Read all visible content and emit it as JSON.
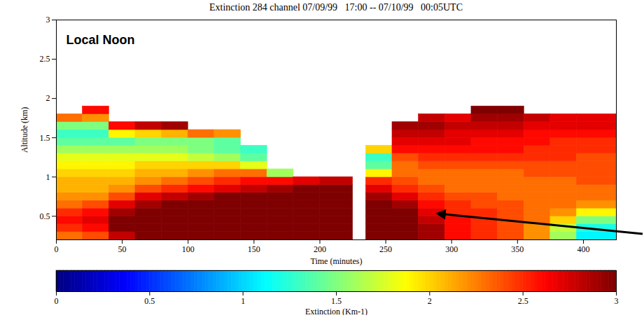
{
  "chart_data": {
    "type": "heatmap",
    "title": "Extinction 284 channel 07/09/99   17:00 -- 07/10/99   00:05UTC",
    "annotations": [
      "Local Noon"
    ],
    "xlabel": "Time (minutes)",
    "ylabel": "Altitude (km)",
    "xlim": [
      0,
      425
    ],
    "xticks": [
      0,
      50,
      100,
      150,
      200,
      250,
      300,
      350,
      400
    ],
    "ylim": [
      0.2,
      3
    ],
    "yticks": [
      0.5,
      1,
      1.5,
      2,
      2.5,
      3
    ],
    "x_edges": [
      0,
      20,
      40,
      60,
      80,
      100,
      120,
      140,
      160,
      180,
      200,
      225,
      235,
      255,
      275,
      295,
      315,
      335,
      355,
      375,
      395,
      425
    ],
    "y_edges": [
      0.2,
      0.3,
      0.4,
      0.5,
      0.6,
      0.7,
      0.8,
      0.9,
      1.0,
      1.1,
      1.2,
      1.3,
      1.4,
      1.5,
      1.6,
      1.7,
      1.8,
      1.9,
      2.0
    ],
    "z": [
      [
        2.3,
        2.5,
        2.6,
        2.5,
        2.3,
        2.2,
        2.1,
        2.1,
        2.0,
        1.9,
        1.8,
        1.6,
        1.4,
        1.3,
        1.5,
        2.3,
        null,
        null
      ],
      [
        2.4,
        2.6,
        2.7,
        2.6,
        2.4,
        2.2,
        2.1,
        2.1,
        2.0,
        1.9,
        1.8,
        1.6,
        1.4,
        1.3,
        1.5,
        2.2,
        2.6,
        null
      ],
      [
        2.8,
        3,
        3,
        2.9,
        2.7,
        2.4,
        2.2,
        2.1,
        2.0,
        1.9,
        1.8,
        1.6,
        1.4,
        1.9,
        2.6,
        null,
        null,
        null
      ],
      [
        3,
        3,
        3,
        3,
        2.9,
        2.7,
        2.4,
        2.2,
        2.1,
        2.0,
        1.8,
        1.6,
        1.5,
        2.0,
        2.8,
        null,
        null,
        null
      ],
      [
        3,
        3,
        3,
        3,
        3,
        2.8,
        2.5,
        2.3,
        2.1,
        2.0,
        1.8,
        1.6,
        1.5,
        2.1,
        2.9,
        null,
        null,
        null
      ],
      [
        3,
        3,
        3,
        3,
        3,
        2.9,
        2.6,
        2.4,
        2.2,
        2.0,
        1.7,
        1.5,
        1.5,
        2.3,
        null,
        null,
        null,
        null
      ],
      [
        3,
        3,
        3,
        3,
        3,
        3,
        2.7,
        2.5,
        2.3,
        2.0,
        1.6,
        1.4,
        1.4,
        2.2,
        null,
        null,
        null,
        null
      ],
      [
        3,
        3,
        3,
        3,
        3,
        3,
        2.8,
        2.6,
        2.3,
        1.8,
        1.4,
        1.3,
        null,
        null,
        null,
        null,
        null,
        null
      ],
      [
        3,
        3,
        3,
        3,
        3,
        3,
        2.9,
        2.6,
        1.6,
        null,
        null,
        null,
        null,
        null,
        null,
        null,
        null,
        null
      ],
      [
        3,
        3,
        3,
        3,
        3,
        3,
        3,
        2.7,
        null,
        null,
        null,
        null,
        null,
        null,
        null,
        null,
        null,
        null
      ],
      [
        3,
        3,
        3,
        3,
        3,
        3,
        3,
        2.8,
        null,
        null,
        null,
        null,
        null,
        null,
        null,
        null,
        null,
        null
      ],
      [
        null,
        null,
        null,
        null,
        null,
        null,
        null,
        null,
        null,
        null,
        null,
        null,
        null,
        null,
        null,
        null,
        null,
        null
      ],
      [
        3,
        3,
        3,
        3,
        3,
        2.9,
        2.7,
        2.5,
        1.9,
        1.4,
        1.3,
        2.0,
        null,
        null,
        null,
        null,
        null,
        null
      ],
      [
        3,
        3,
        3,
        3,
        2.9,
        2.7,
        2.5,
        2.4,
        2.3,
        2.3,
        2.4,
        2.6,
        2.7,
        2.8,
        2.9,
        null,
        null,
        null
      ],
      [
        2.9,
        2.9,
        2.8,
        2.7,
        2.6,
        2.5,
        2.4,
        2.3,
        2.3,
        2.4,
        2.5,
        2.6,
        2.7,
        2.8,
        2.9,
        2.8,
        null,
        null
      ],
      [
        2.6,
        2.6,
        2.6,
        2.5,
        2.5,
        2.4,
        2.3,
        2.3,
        2.3,
        2.4,
        2.5,
        2.6,
        2.7,
        2.7,
        2.8,
        2.7,
        null,
        null
      ],
      [
        2.5,
        2.5,
        2.5,
        2.5,
        2.4,
        2.4,
        2.3,
        2.3,
        2.3,
        2.4,
        2.5,
        2.6,
        2.6,
        2.7,
        2.8,
        2.9,
        3,
        null
      ],
      [
        2.4,
        2.4,
        2.4,
        2.4,
        2.4,
        2.3,
        2.3,
        2.3,
        2.3,
        2.4,
        2.5,
        2.6,
        2.6,
        2.7,
        2.8,
        2.9,
        3,
        null
      ],
      [
        2.2,
        2.2,
        2.3,
        2.3,
        2.3,
        2.3,
        2.3,
        2.3,
        2.4,
        2.4,
        2.5,
        2.5,
        2.6,
        2.6,
        2.7,
        2.8,
        null,
        null
      ],
      [
        1.6,
        1.7,
        2.0,
        2.2,
        2.3,
        2.3,
        2.3,
        2.3,
        2.4,
        2.4,
        2.5,
        2.5,
        2.5,
        2.6,
        2.7,
        2.7,
        null,
        null
      ],
      [
        1.1,
        1.2,
        1.5,
        1.9,
        2.2,
        2.3,
        2.3,
        2.4,
        2.4,
        2.4,
        2.4,
        2.5,
        2.5,
        2.6,
        2.7,
        2.7,
        null,
        null
      ]
    ],
    "colorbar": {
      "label": "Extinction (Km-1)",
      "range": [
        0,
        3
      ],
      "ticks": [
        0,
        0.5,
        1,
        1.5,
        2,
        2.5,
        3
      ]
    }
  }
}
